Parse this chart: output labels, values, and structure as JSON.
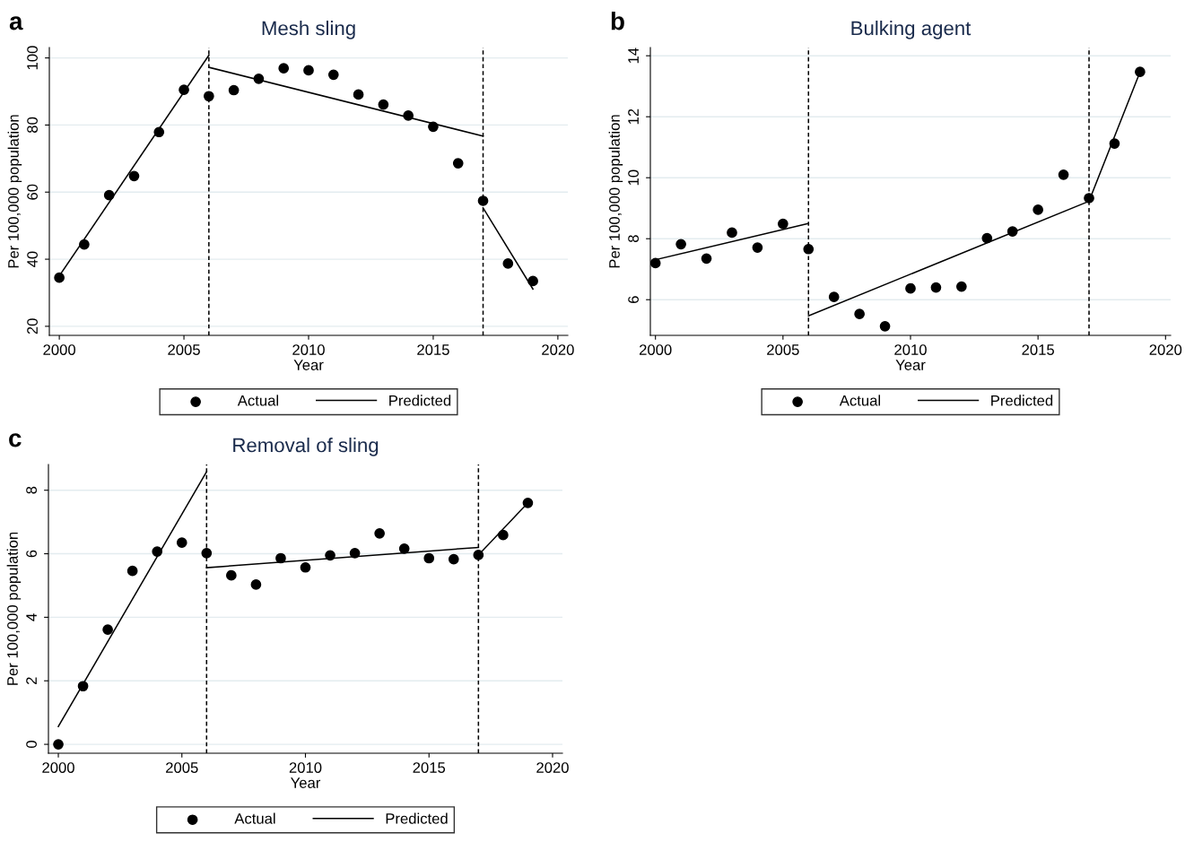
{
  "chart_data": [
    {
      "type": "scatter",
      "title": "Mesh sling",
      "xlabel": "Year",
      "ylabel": "Per 100,000 population",
      "annotations": [
        "a"
      ],
      "xlim": [
        1999.6,
        2020.4
      ],
      "xticks": [
        2000,
        2005,
        2010,
        2015,
        2020
      ],
      "ylim": [
        17.3,
        103.1
      ],
      "yticks": [
        20,
        40,
        60,
        80,
        100
      ],
      "grid": "y",
      "legend": "bottom",
      "ref_lines": [
        {
          "axis": "x",
          "value": 2006,
          "label": null,
          "line_style": "dashed",
          "color": "#000000"
        },
        {
          "axis": "x",
          "value": 2017,
          "label": null,
          "line_style": "dashed",
          "color": "#000000"
        }
      ],
      "series": [
        {
          "name": "Actual",
          "marker": "circle",
          "color": "#000000",
          "x": [
            2000,
            2001,
            2002,
            2003,
            2004,
            2005,
            2006,
            2007,
            2008,
            2009,
            2010,
            2011,
            2012,
            2013,
            2014,
            2015,
            2016,
            2017,
            2018,
            2019
          ],
          "values": [
            34.5,
            44.4,
            59.1,
            64.8,
            77.9,
            90.5,
            88.6,
            90.4,
            93.8,
            96.9,
            96.3,
            95.0,
            89.1,
            86.1,
            82.8,
            79.5,
            68.6,
            57.4,
            38.7,
            33.5
          ]
        },
        {
          "name": "Predicted",
          "type": "line",
          "marker": "none",
          "color": "#000000",
          "x": [
            2000,
            2006
          ],
          "values": [
            35.0,
            100.8
          ]
        },
        {
          "type": "line",
          "marker": "none",
          "color": "#000000",
          "x": [
            2006,
            2017
          ],
          "values": [
            97.2,
            76.7
          ]
        },
        {
          "type": "line",
          "marker": "none",
          "color": "#000000",
          "x": [
            2017,
            2019
          ],
          "values": [
            55.3,
            31.1
          ]
        }
      ]
    },
    {
      "type": "scatter",
      "title": "Bulking agent",
      "xlabel": "Year",
      "ylabel": "Per 100,000 population",
      "annotations": [
        "b"
      ],
      "xlim": [
        1999.8,
        2020.2
      ],
      "xticks": [
        2000,
        2005,
        2010,
        2015,
        2020
      ],
      "ylim": [
        4.83,
        14.27
      ],
      "yticks": [
        6,
        8,
        10,
        12,
        14
      ],
      "grid": "y",
      "legend": "bottom",
      "ref_lines": [
        {
          "axis": "x",
          "value": 2006,
          "label": null,
          "line_style": "dashed",
          "color": "#000000"
        },
        {
          "axis": "x",
          "value": 2017,
          "label": null,
          "line_style": "dashed",
          "color": "#000000"
        }
      ],
      "series": [
        {
          "name": "Actual",
          "marker": "circle",
          "color": "#000000",
          "x": [
            2000,
            2001,
            2002,
            2003,
            2004,
            2005,
            2006,
            2007,
            2008,
            2009,
            2010,
            2011,
            2012,
            2013,
            2014,
            2015,
            2016,
            2017,
            2018,
            2019
          ],
          "values": [
            7.2,
            7.82,
            7.35,
            8.2,
            7.71,
            8.49,
            7.66,
            6.09,
            5.53,
            5.13,
            6.37,
            6.4,
            6.43,
            8.02,
            8.24,
            8.95,
            10.1,
            9.33,
            11.12,
            13.47
          ]
        },
        {
          "name": "Predicted",
          "type": "line",
          "marker": "none",
          "color": "#000000",
          "x": [
            2000,
            2006
          ],
          "values": [
            7.31,
            8.5
          ]
        },
        {
          "type": "line",
          "marker": "none",
          "color": "#000000",
          "x": [
            2006,
            2017
          ],
          "values": [
            5.47,
            9.23
          ]
        },
        {
          "type": "line",
          "marker": "none",
          "color": "#000000",
          "x": [
            2017,
            2019
          ],
          "values": [
            9.23,
            13.47
          ]
        }
      ]
    },
    {
      "type": "scatter",
      "title": "Removal of sling",
      "xlabel": "Year",
      "ylabel": "Per 100,000 population",
      "annotations": [
        "c"
      ],
      "xlim": [
        1999.6,
        2020.4
      ],
      "xticks": [
        2000,
        2005,
        2010,
        2015,
        2020
      ],
      "ylim": [
        -0.28,
        8.81
      ],
      "yticks": [
        0,
        2,
        4,
        6,
        8
      ],
      "grid": "y",
      "legend": "bottom",
      "ref_lines": [
        {
          "axis": "x",
          "value": 2006,
          "label": null,
          "line_style": "dashed",
          "color": "#000000"
        },
        {
          "axis": "x",
          "value": 2017,
          "label": null,
          "line_style": "dashed",
          "color": "#000000"
        }
      ],
      "series": [
        {
          "name": "Actual",
          "marker": "circle",
          "color": "#000000",
          "x": [
            2000,
            2001,
            2002,
            2003,
            2004,
            2005,
            2006,
            2007,
            2008,
            2009,
            2010,
            2011,
            2012,
            2013,
            2014,
            2015,
            2016,
            2017,
            2018,
            2019
          ],
          "values": [
            0.0,
            1.83,
            3.61,
            5.46,
            6.07,
            6.35,
            6.02,
            5.32,
            5.03,
            5.86,
            5.57,
            5.95,
            6.02,
            6.64,
            6.16,
            5.86,
            5.83,
            5.96,
            6.59,
            7.6
          ]
        },
        {
          "name": "Predicted",
          "type": "line",
          "marker": "none",
          "color": "#000000",
          "x": [
            2000,
            2006
          ],
          "values": [
            0.56,
            8.58
          ]
        },
        {
          "type": "line",
          "marker": "none",
          "color": "#000000",
          "x": [
            2006,
            2017
          ],
          "values": [
            5.56,
            6.2
          ]
        },
        {
          "type": "line",
          "marker": "none",
          "color": "#000000",
          "x": [
            2017,
            2019
          ],
          "values": [
            5.96,
            7.6
          ]
        }
      ]
    }
  ]
}
